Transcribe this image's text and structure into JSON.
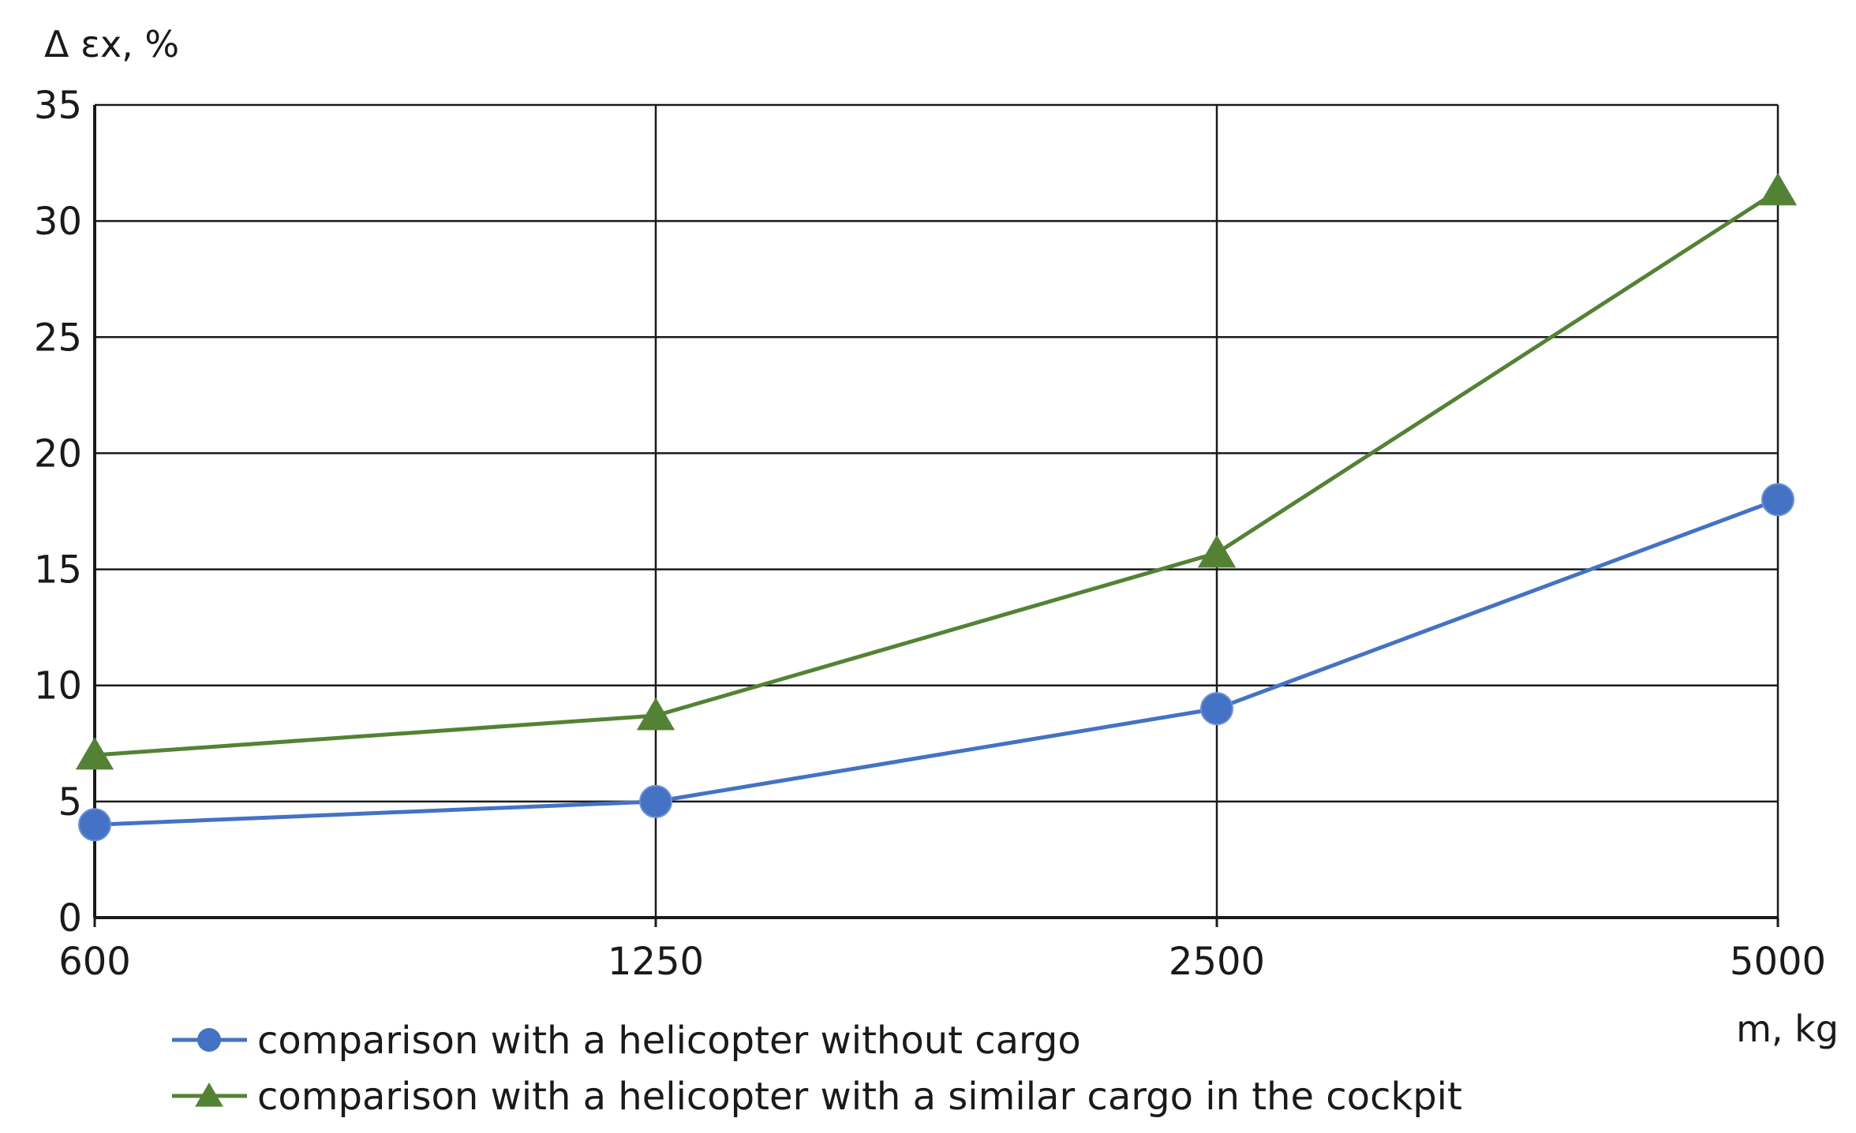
{
  "chart_data": {
    "type": "line",
    "categories": [
      "600",
      "1250",
      "2500",
      "5000"
    ],
    "ylabel": "Δ εx, %",
    "xlabel": "m, kg",
    "ylim": [
      0,
      35
    ],
    "yticks": [
      0,
      5,
      10,
      15,
      20,
      25,
      30,
      35
    ],
    "grid": true,
    "legend_position": "bottom",
    "series": [
      {
        "name": "comparison with a helicopter without cargo",
        "values": [
          4,
          5,
          9,
          18
        ],
        "color": "#4472c4",
        "marker": "circle"
      },
      {
        "name": "comparison with a helicopter with a similar cargo in the cockpit",
        "values": [
          7,
          8.7,
          15.7,
          31.3
        ],
        "color": "#548235",
        "marker": "triangle"
      }
    ]
  }
}
